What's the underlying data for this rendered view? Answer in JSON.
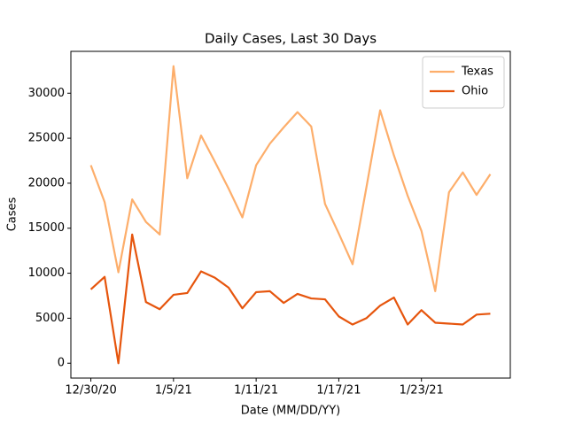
{
  "chart_data": {
    "type": "line",
    "title": "Daily Cases, Last 30 Days",
    "x_label": "Date (MM/DD/YY)",
    "y_label": "Cases",
    "categories": [
      "12/30/20",
      null,
      null,
      null,
      null,
      null,
      "1/5/21",
      null,
      null,
      null,
      null,
      null,
      "1/11/21",
      null,
      null,
      null,
      null,
      null,
      "1/17/21",
      null,
      null,
      null,
      null,
      null,
      "1/23/21",
      null,
      null,
      null,
      null,
      null
    ],
    "series": [
      {
        "name": "Texas",
        "color": "#fdae6b",
        "values": [
          22000,
          17900,
          10100,
          18200,
          15700,
          14300,
          33000,
          20550,
          25300,
          22400,
          19400,
          16200,
          22000,
          24400,
          26200,
          27900,
          26300,
          17700,
          14400,
          11000,
          19500,
          28100,
          23100,
          18600,
          14700,
          8000,
          19000,
          21200,
          18700,
          21000
        ]
      },
      {
        "name": "Ohio",
        "color": "#e6550d",
        "values": [
          8200,
          9600,
          0,
          14300,
          6800,
          6000,
          7600,
          7800,
          10200,
          9500,
          8400,
          6100,
          7900,
          8000,
          6700,
          7700,
          7200,
          7100,
          5200,
          4300,
          5000,
          6400,
          7300,
          4300,
          5900,
          4500,
          4400,
          4300,
          5400,
          5500
        ]
      }
    ],
    "ylim": [
      -1650,
      34650
    ],
    "yticks": [
      0,
      5000,
      10000,
      15000,
      20000,
      25000,
      30000
    ],
    "grid": false,
    "legend": "upper right"
  }
}
